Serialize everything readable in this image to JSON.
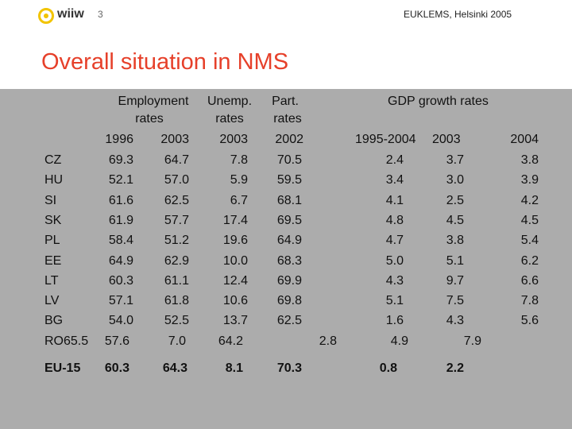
{
  "header": {
    "logo_text": "wiiw",
    "page_number": "3",
    "conference": "EUKLEMS, Helsinki 2005"
  },
  "title": "Overall situation in NMS",
  "table": {
    "headers": {
      "employment_l1": "Employment",
      "employment_l2": "rates",
      "unemp_l1": "Unemp.",
      "unemp_l2": "rates",
      "part_l1": "Part.",
      "part_l2": "rates",
      "gdp": "GDP growth rates"
    },
    "years": {
      "emp_1996": "1996",
      "emp_2003": "2003",
      "unemp_2003": "2003",
      "part_2002": "2002",
      "gdp_1995_2004": "1995-2004",
      "gdp_2003": "2003",
      "gdp_2004": "2004"
    },
    "rows": [
      {
        "country": "CZ",
        "emp1996": "69.3",
        "emp2003": "64.7",
        "unemp": "7.8",
        "part": "70.5",
        "gdp9504": "2.4",
        "gdp2003": "3.7",
        "gdp2004": "3.8"
      },
      {
        "country": "HU",
        "emp1996": "52.1",
        "emp2003": "57.0",
        "unemp": "5.9",
        "part": "59.5",
        "gdp9504": "3.4",
        "gdp2003": "3.0",
        "gdp2004": "3.9"
      },
      {
        "country": "SI",
        "emp1996": "61.6",
        "emp2003": "62.5",
        "unemp": "6.7",
        "part": "68.1",
        "gdp9504": "4.1",
        "gdp2003": "2.5",
        "gdp2004": "4.2"
      },
      {
        "country": "SK",
        "emp1996": "61.9",
        "emp2003": "57.7",
        "unemp": "17.4",
        "part": "69.5",
        "gdp9504": "4.8",
        "gdp2003": "4.5",
        "gdp2004": "4.5"
      },
      {
        "country": "PL",
        "emp1996": "58.4",
        "emp2003": "51.2",
        "unemp": "19.6",
        "part": "64.9",
        "gdp9504": "4.7",
        "gdp2003": "3.8",
        "gdp2004": "5.4"
      },
      {
        "country": "EE",
        "emp1996": "64.9",
        "emp2003": "62.9",
        "unemp": "10.0",
        "part": "68.3",
        "gdp9504": "5.0",
        "gdp2003": "5.1",
        "gdp2004": "6.2"
      },
      {
        "country": "LT",
        "emp1996": "60.3",
        "emp2003": "61.1",
        "unemp": "12.4",
        "part": "69.9",
        "gdp9504": "4.3",
        "gdp2003": "9.7",
        "gdp2004": "6.6"
      },
      {
        "country": "LV",
        "emp1996": "57.1",
        "emp2003": "61.8",
        "unemp": "10.6",
        "part": "69.8",
        "gdp9504": "5.1",
        "gdp2003": "7.5",
        "gdp2004": "7.8"
      },
      {
        "country": "BG",
        "emp1996": "54.0",
        "emp2003": "52.5",
        "unemp": "13.7",
        "part": "62.5",
        "gdp9504": "1.6",
        "gdp2003": "4.3",
        "gdp2004": "5.6"
      }
    ],
    "ro_row": {
      "country_emp1996": "RO65.5",
      "emp2003": "57.6",
      "unemp": "7.0",
      "part": "64.2",
      "gdp9504": "2.8",
      "gdp2003": "4.9",
      "gdp2004": "7.9"
    },
    "eu_row": {
      "country": "EU-15",
      "emp1996": "60.3",
      "emp2003": "64.3",
      "unemp": "8.1",
      "part": "70.3",
      "gdp9504": "0.8",
      "gdp2003": "2.2"
    }
  }
}
